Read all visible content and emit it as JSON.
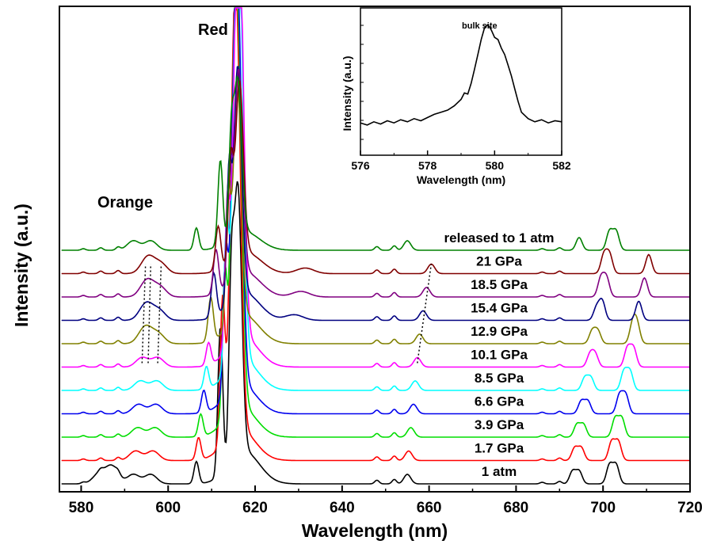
{
  "chart_data": [
    {
      "type": "line",
      "title": "",
      "xlabel": "Wavelength (nm)",
      "ylabel": "Intensity (a.u.)",
      "xlim": [
        575,
        720
      ],
      "xticks": [
        580,
        600,
        620,
        640,
        660,
        680,
        700,
        720
      ],
      "yticks_shown": false,
      "legend": "none",
      "annotations": [
        "Orange",
        "Red"
      ],
      "series": [
        {
          "name": "1 atm",
          "color": "#000000",
          "offset": 0,
          "red_peak_height": 3.4,
          "peaks_nm": [
            584,
            586.5,
            587.5,
            592,
            596,
            606.5,
            612,
            614.5,
            616,
            655,
            693,
            694.5,
            701.5,
            703
          ]
        },
        {
          "name": "1.7 GPa",
          "color": "#ff0000",
          "offset": 1,
          "red_peak_height": 3.3,
          "peaks_nm": [
            592.5,
            596.5,
            607,
            612.5,
            615,
            616,
            655.3,
            693.5,
            695,
            702,
            703.5
          ]
        },
        {
          "name": "3.9 GPa",
          "color": "#00dd00",
          "offset": 2,
          "red_peak_height": 3.2,
          "peaks_nm": [
            593,
            597,
            607.5,
            613,
            615.2,
            616.2,
            655.8,
            694,
            695.5,
            702.8,
            704.3
          ]
        },
        {
          "name": "6.6 GPa",
          "color": "#0000ee",
          "offset": 3,
          "red_peak_height": 3.1,
          "peaks_nm": [
            593.2,
            597.2,
            608.2,
            613.2,
            615.3,
            616.3,
            656.4,
            695,
            696.5,
            703.8,
            705.2
          ]
        },
        {
          "name": "8.5 GPa",
          "color": "#00ffff",
          "offset": 4,
          "red_peak_height": 3.3,
          "peaks_nm": [
            593.6,
            597.4,
            608.8,
            613.4,
            615.6,
            616.6,
            656.8,
            695.8,
            697.2,
            704.8,
            706.2
          ]
        },
        {
          "name": "10.1 GPa",
          "color": "#ff00ff",
          "offset": 5,
          "red_peak_height": 3.2,
          "peaks_nm": [
            594,
            597.6,
            609.3,
            613.6,
            615.7,
            616.7,
            657.3,
            697,
            698.2,
            705.6,
            707
          ]
        },
        {
          "name": "12.9 GPa",
          "color": "#808000",
          "offset": 6,
          "red_peak_height": 3.0,
          "peaks_nm": [
            594.2,
            595.4,
            597.8,
            609.8,
            613.8,
            615.9,
            657.8,
            697.5,
            698.8,
            706.8,
            707.8
          ]
        },
        {
          "name": "15.4 GPa",
          "color": "#000080",
          "offset": 7,
          "red_peak_height": 2.9,
          "peaks_nm": [
            594.4,
            595.6,
            598,
            610.5,
            614,
            616,
            629,
            658.6,
            698.5,
            699.8,
            708.2
          ]
        },
        {
          "name": "18.5 GPa",
          "color": "#800080",
          "offset": 8,
          "red_peak_height": 2.6,
          "peaks_nm": [
            594.6,
            595.8,
            598.2,
            611,
            614.2,
            616.2,
            630.5,
            659.4,
            699.5,
            700.8,
            709.5
          ]
        },
        {
          "name": "21 GPa",
          "color": "#800000",
          "offset": 9,
          "red_peak_height": 2.2,
          "peaks_nm": [
            594.8,
            596,
            598.4,
            611.5,
            614.4,
            616.4,
            631.5,
            660.5,
            700.2,
            701.5,
            710.5
          ]
        },
        {
          "name": "released to 1 atm",
          "color": "#008000",
          "offset": 10,
          "red_peak_height": 1.95,
          "peaks_nm": [
            592,
            596,
            606.5,
            612,
            614.5,
            616,
            655,
            694.5,
            701.5,
            703
          ]
        }
      ]
    },
    {
      "type": "line",
      "title": "",
      "xlabel": "Wavelength (nm)",
      "ylabel": "Intensity (a.u.)",
      "xlim": [
        576,
        582
      ],
      "xticks": [
        576,
        578,
        580,
        582
      ],
      "yticks_shown": false,
      "annotations": [
        "bulk site"
      ],
      "series": [
        {
          "color": "#000000",
          "x": [
            576.0,
            576.2,
            576.4,
            576.6,
            576.8,
            577.0,
            577.2,
            577.4,
            577.6,
            577.8,
            578.0,
            578.2,
            578.4,
            578.6,
            578.8,
            579.0,
            579.1,
            579.2,
            579.3,
            579.4,
            579.5,
            579.6,
            579.7,
            579.8,
            579.9,
            580.0,
            580.1,
            580.2,
            580.3,
            580.4,
            580.5,
            580.6,
            580.7,
            580.8,
            581.0,
            581.2,
            581.4,
            581.6,
            581.8,
            582.0
          ],
          "y": [
            0.08,
            0.06,
            0.09,
            0.07,
            0.1,
            0.08,
            0.11,
            0.09,
            0.12,
            0.1,
            0.13,
            0.16,
            0.18,
            0.2,
            0.24,
            0.3,
            0.36,
            0.35,
            0.45,
            0.58,
            0.72,
            0.86,
            0.97,
            1.0,
            0.95,
            0.88,
            0.86,
            0.78,
            0.72,
            0.62,
            0.52,
            0.4,
            0.28,
            0.18,
            0.12,
            0.09,
            0.11,
            0.08,
            0.1,
            0.09
          ]
        }
      ]
    }
  ]
}
